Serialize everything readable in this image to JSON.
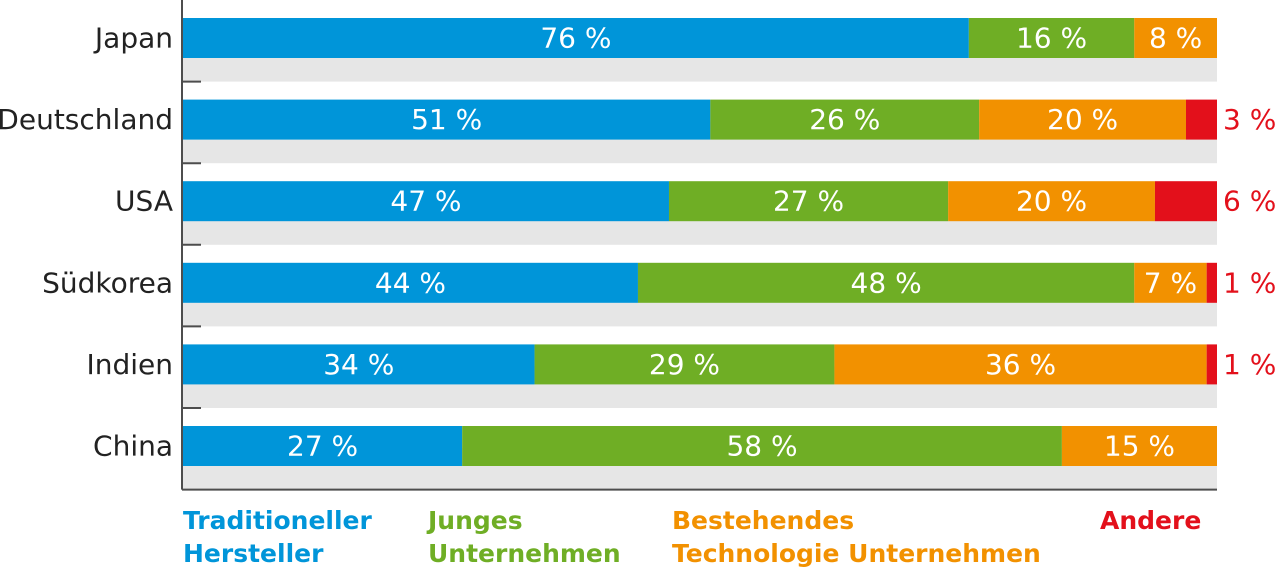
{
  "chart_data": {
    "type": "bar",
    "orientation": "horizontal",
    "stacked": true,
    "categories": [
      "Japan",
      "Deutschland",
      "USA",
      "Südkorea",
      "Indien",
      "China"
    ],
    "series": [
      {
        "name": "Traditioneller Hersteller",
        "legend_lines": [
          "Traditioneller",
          "Hersteller"
        ],
        "color": "#0095d9",
        "values": [
          76,
          51,
          47,
          44,
          34,
          27
        ]
      },
      {
        "name": "Junges Unternehmen",
        "legend_lines": [
          "Junges",
          "Unternehmen"
        ],
        "color": "#6fae25",
        "values": [
          16,
          26,
          27,
          48,
          29,
          58
        ]
      },
      {
        "name": "Bestehendes Technologie Unternehmen",
        "legend_lines": [
          "Bestehendes",
          "Technologie Unternehmen"
        ],
        "color": "#f29100",
        "values": [
          8,
          20,
          20,
          7,
          36,
          15
        ]
      },
      {
        "name": "Andere",
        "legend_lines": [
          "Andere"
        ],
        "color": "#e3101b",
        "values": [
          0,
          3,
          6,
          1,
          1,
          0
        ]
      }
    ],
    "value_labels": [
      [
        "76 %",
        "51 %",
        "47 %",
        "44 %",
        "34 %",
        "27 %"
      ],
      [
        "16 %",
        "26 %",
        "27 %",
        "48 %",
        "29 %",
        "58 %"
      ],
      [
        "8 %",
        "20 %",
        "20 %",
        "7 %",
        "36 %",
        "15 %"
      ],
      [
        "",
        "3 %",
        "6 %",
        "1 %",
        "1 %",
        ""
      ]
    ],
    "xlim": [
      0,
      100
    ],
    "legend_position": "bottom",
    "band_background": "#e6e6e6",
    "label_colors": {
      "inside": "#ffffff",
      "outside": "#e3101b"
    }
  }
}
